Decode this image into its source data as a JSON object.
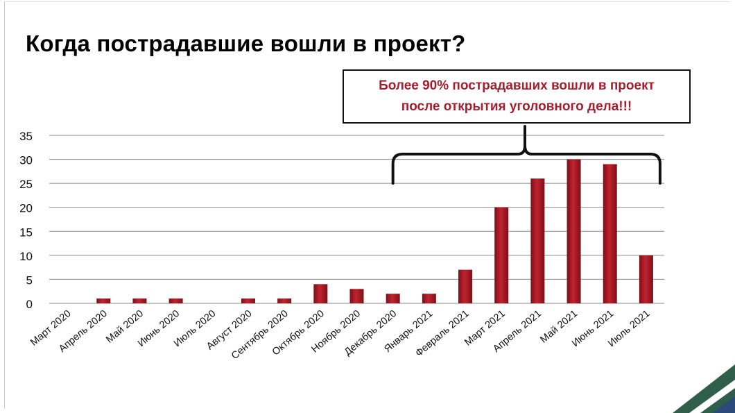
{
  "slide": {
    "title": "Когда пострадавшие вошли в проект?",
    "callout": {
      "line1": "Более 90% пострадавших вошли в проект",
      "line2": "после открытия уголовного дела!!!"
    }
  },
  "colors": {
    "bar": "#c0232f",
    "bar_dark": "#7d1018",
    "callout_text": "#a31f2e",
    "grid": "#8a8a8a",
    "deco_green": "#2f5e4a",
    "deco_blue": "#2a4a7a"
  },
  "chart_data": {
    "type": "bar",
    "categories": [
      "Март 2020",
      "Апрель 2020",
      "Май 2020",
      "Июнь 2020",
      "Июль 2020",
      "Август 2020",
      "Сентябрь 2020",
      "Октябрь 2020",
      "Ноябрь 2020",
      "Декабрь 2020",
      "Январь 2021",
      "Февраль 2021",
      "Март 2021",
      "Апрель 2021",
      "Май 2021",
      "Июнь 2021",
      "Июль 2021"
    ],
    "values": [
      0,
      1,
      1,
      1,
      0,
      1,
      1,
      4,
      3,
      2,
      2,
      7,
      20,
      26,
      30,
      29,
      10
    ],
    "ylim": [
      0,
      35
    ],
    "yticks": [
      0,
      5,
      10,
      15,
      20,
      25,
      30,
      35
    ],
    "grid": true,
    "bracket_categories": [
      "Декабрь 2020",
      "Июль 2021"
    ]
  }
}
